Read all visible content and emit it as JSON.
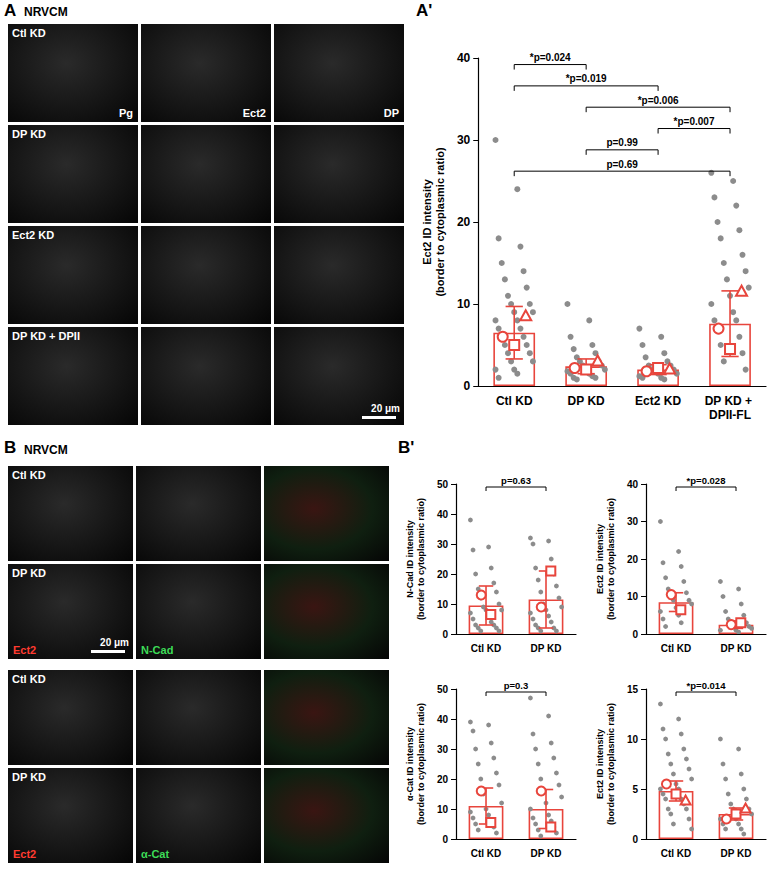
{
  "panels": {
    "A": {
      "letter": "A",
      "cell_type": "NRVCM",
      "rows": [
        "Ctl KD",
        "DP KD",
        "Ect2 KD",
        "DP KD + DPII"
      ],
      "channels": [
        "Pg",
        "Ect2",
        "DP"
      ],
      "scale_bar": "20 μm"
    },
    "B": {
      "letter": "B",
      "cell_type": "NRVCM",
      "groups": [
        {
          "rows": [
            "Ctl KD",
            "DP KD"
          ],
          "channels": [
            "Ect2",
            "N-Cad"
          ],
          "channel_colors": [
            "#ff3b30",
            "#3ddc57"
          ],
          "scale_bar": "20 μm"
        },
        {
          "rows": [
            "Ctl KD",
            "DP KD"
          ],
          "channels": [
            "Ect2",
            "α-Cat"
          ],
          "channel_colors": [
            "#ff3b30",
            "#3ddc57"
          ]
        }
      ]
    }
  },
  "chart_data": [
    {
      "panel": "A'",
      "type": "bar",
      "y_label": "Ect2 ID intensity (border to cytoplasmic ratio)",
      "categories": [
        "Ctl KD",
        "DP KD",
        "Ect2 KD",
        "DP KD + DPII-FL"
      ],
      "values": [
        6.5,
        2.4,
        2.0,
        7.6
      ],
      "errors": [
        3.2,
        0.9,
        0.6,
        4.0
      ],
      "points": [
        [
          30,
          24,
          18,
          17,
          15,
          14,
          13,
          12,
          11,
          10,
          10,
          9,
          9,
          8,
          8,
          7,
          7,
          6,
          6,
          5,
          5,
          4,
          4,
          3,
          3,
          2,
          2,
          1.5,
          1
        ],
        [
          10,
          8,
          6,
          5,
          4.5,
          4,
          3.5,
          3,
          3,
          2.5,
          2.5,
          2,
          2,
          1.8,
          1.5,
          1.5,
          1.2,
          1,
          1,
          0.8
        ],
        [
          7,
          6,
          5,
          4,
          3.5,
          3,
          2.5,
          2.5,
          2,
          2,
          1.8,
          1.5,
          1.5,
          1.2,
          1,
          1,
          0.8
        ],
        [
          26,
          25,
          23,
          22,
          20,
          19,
          18,
          16,
          15,
          14,
          13,
          12,
          11,
          10,
          9,
          8,
          8,
          7,
          6,
          5,
          4,
          3,
          2
        ]
      ],
      "replicates": {
        "markers": [
          "circle",
          "square",
          "triangle"
        ],
        "values": [
          [
            6,
            5,
            8.5
          ],
          [
            2.2,
            2.0,
            3.0
          ],
          [
            1.8,
            2.2,
            2.0
          ],
          [
            7,
            4.5,
            11.5
          ]
        ]
      },
      "comparisons": [
        {
          "pair": [
            "Ctl KD",
            "DP KD"
          ],
          "label": "*p=0.024"
        },
        {
          "pair": [
            "Ctl KD",
            "Ect2 KD"
          ],
          "label": "*p=0.019"
        },
        {
          "pair": [
            "DP KD",
            "DP KD + DPII-FL"
          ],
          "label": "*p=0.006"
        },
        {
          "pair": [
            "Ect2 KD",
            "DP KD + DPII-FL"
          ],
          "label": "*p=0.007"
        },
        {
          "pair": [
            "DP KD",
            "Ect2 KD"
          ],
          "label": "p=0.99"
        },
        {
          "pair": [
            "Ctl KD",
            "DP KD + DPII-FL"
          ],
          "label": "p=0.69"
        }
      ],
      "color": "#e8453c",
      "ylim": [
        0,
        40
      ],
      "yticks": [
        0,
        10,
        20,
        30,
        40
      ]
    },
    {
      "panel": "B'",
      "type": "bar",
      "y_label": "N-Cad ID intensity (border to cytoplasmic ratio)",
      "categories": [
        "Ctl KD",
        "DP KD"
      ],
      "values": [
        9.5,
        11.5
      ],
      "errors": [
        6.5,
        9.5
      ],
      "points": [
        [
          38,
          29,
          28,
          22,
          20,
          17,
          15,
          14,
          12,
          10,
          9,
          8,
          8,
          7,
          6,
          5,
          4,
          3,
          3,
          2,
          2,
          1,
          1
        ],
        [
          32,
          31,
          30,
          25,
          22,
          20,
          18,
          16,
          14,
          12,
          10,
          9,
          8,
          7,
          6,
          5,
          4,
          3,
          2,
          2,
          1,
          1
        ]
      ],
      "replicates": {
        "markers": [
          "circle",
          "square"
        ],
        "values": [
          [
            13,
            6.5
          ],
          [
            9,
            21
          ]
        ]
      },
      "comparisons": [
        {
          "pair": [
            "Ctl KD",
            "DP KD"
          ],
          "label": "p=0.63"
        }
      ],
      "color": "#e8453c",
      "ylim": [
        0,
        50
      ],
      "yticks": [
        0,
        10,
        20,
        30,
        40,
        50
      ]
    },
    {
      "type": "bar",
      "y_label": "Ect2 ID intensity (border to cytoplasmic ratio)",
      "categories": [
        "Ctl KD",
        "DP KD"
      ],
      "values": [
        8.5,
        2.5
      ],
      "errors": [
        2.5,
        1.0
      ],
      "points": [
        [
          30,
          22,
          19,
          18,
          15,
          14,
          12,
          11,
          10,
          9,
          9,
          8,
          7,
          6,
          5,
          4,
          3,
          2
        ],
        [
          14,
          12,
          10,
          8,
          6,
          5,
          4,
          3,
          3,
          2,
          2,
          1.5,
          1,
          1,
          0.5
        ]
      ],
      "replicates": {
        "markers": [
          "circle",
          "square"
        ],
        "values": [
          [
            10.5,
            6.5
          ],
          [
            2.5,
            3
          ]
        ]
      },
      "comparisons": [
        {
          "pair": [
            "Ctl KD",
            "DP KD"
          ],
          "label": "*p=0.028"
        }
      ],
      "color": "#e8453c",
      "ylim": [
        0,
        40
      ],
      "yticks": [
        0,
        10,
        20,
        30,
        40
      ]
    },
    {
      "type": "bar",
      "y_label": "α-Cat ID intensity (border to cytoplasmic ratio)",
      "categories": [
        "Ctl KD",
        "DP KD"
      ],
      "values": [
        11,
        10
      ],
      "errors": [
        6,
        6.5
      ],
      "points": [
        [
          39,
          38,
          36,
          32,
          30,
          27,
          25,
          22,
          20,
          18,
          15,
          12,
          10,
          9,
          8,
          7,
          6,
          5,
          4,
          3,
          2
        ],
        [
          47,
          41,
          35,
          32,
          30,
          27,
          25,
          22,
          20,
          18,
          16,
          14,
          12,
          10,
          8,
          7,
          6,
          5,
          4,
          3,
          2,
          1
        ]
      ],
      "replicates": {
        "markers": [
          "circle",
          "square"
        ],
        "values": [
          [
            16,
            5.5
          ],
          [
            16,
            4
          ]
        ]
      },
      "comparisons": [
        {
          "pair": [
            "Ctl KD",
            "DP KD"
          ],
          "label": "p=0.3"
        }
      ],
      "color": "#e8453c",
      "ylim": [
        0,
        50
      ],
      "yticks": [
        0,
        10,
        20,
        30,
        40,
        50
      ]
    },
    {
      "type": "bar",
      "y_label": "Ect2 ID intensity (border to cytoplasmic ratio)",
      "categories": [
        "Ctl KD",
        "DP KD"
      ],
      "values": [
        4.8,
        2.5
      ],
      "errors": [
        1.0,
        0.6
      ],
      "points": [
        [
          13.5,
          12,
          11,
          10.5,
          10,
          9,
          8.5,
          8,
          7.5,
          7,
          6.5,
          6,
          5.5,
          5,
          5,
          4.5,
          4,
          4,
          3.5,
          3,
          3,
          2.5,
          2,
          1.5,
          1
        ],
        [
          10,
          9,
          7.5,
          6.5,
          6,
          5,
          4.5,
          4,
          3.5,
          3,
          3,
          2.5,
          2,
          2,
          1.5,
          1.5,
          1,
          1,
          0.5
        ]
      ],
      "replicates": {
        "markers": [
          "circle",
          "square",
          "triangle"
        ],
        "values": [
          [
            5.5,
            4.5,
            3.8
          ],
          [
            2.0,
            2.5,
            3.0
          ]
        ]
      },
      "comparisons": [
        {
          "pair": [
            "Ctl KD",
            "DP KD"
          ],
          "label": "*p=0.014"
        }
      ],
      "color": "#e8453c",
      "ylim": [
        0,
        15
      ],
      "yticks": [
        0,
        5,
        10,
        15
      ]
    }
  ]
}
